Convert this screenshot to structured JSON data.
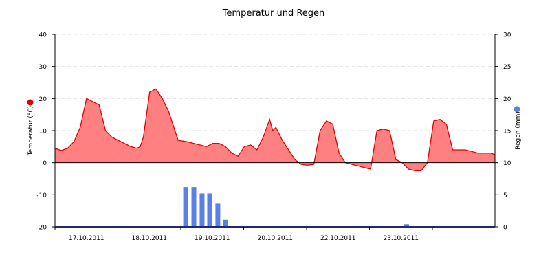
{
  "chart_data": {
    "type": "area",
    "title": "Temperatur und Regen",
    "y_left": {
      "label": "Temperatur (°C)",
      "ylim": [
        -20,
        40
      ],
      "ticks": [
        -20,
        -10,
        0,
        10,
        20,
        30,
        40
      ]
    },
    "y_right": {
      "label": "Regen (mm)",
      "ylim": [
        0,
        30
      ],
      "ticks": [
        0,
        5,
        10,
        15,
        20,
        25,
        30
      ]
    },
    "x_ticks": [
      "17.10.2011",
      "18.10.2011",
      "19.10.2011",
      "20.10.2011",
      "22.10.2011",
      "23.10.2011"
    ],
    "grid": "horizontal dashed",
    "series": [
      {
        "name": "Temperatur (°C)",
        "kind": "area",
        "axis": "left",
        "color": "#e00000",
        "fill": "#ff8080",
        "x": [
          0,
          0.1,
          0.2,
          0.3,
          0.4,
          0.5,
          0.6,
          0.7,
          0.8,
          0.9,
          1.0,
          1.1,
          1.15,
          1.2,
          1.3,
          1.35,
          1.4,
          1.5,
          1.6,
          1.7,
          1.8,
          1.9,
          1.95,
          2.0,
          2.1,
          2.2,
          2.3,
          2.4,
          2.5,
          2.6,
          2.7,
          2.8,
          2.9,
          3.0,
          3.1,
          3.2,
          3.3,
          3.4,
          3.45,
          3.5,
          3.6,
          3.7,
          3.8,
          3.9,
          4.0,
          4.1,
          4.2,
          4.3,
          4.4,
          4.5,
          4.6,
          4.7,
          4.8,
          4.9,
          5.0,
          5.1,
          5.2,
          5.3,
          5.4,
          5.5,
          5.6,
          5.7,
          5.8,
          5.9,
          6.0,
          6.1,
          6.2,
          6.3,
          6.4,
          6.5,
          6.6,
          6.7,
          6.8,
          6.9,
          6.97
        ],
        "values": [
          4.5,
          3.8,
          4.5,
          6.5,
          11,
          20,
          19,
          18,
          10,
          8,
          7,
          6,
          5.5,
          5,
          4.5,
          5,
          8,
          22,
          23,
          20,
          16,
          10,
          7,
          6.8,
          6.5,
          6,
          5.5,
          5,
          6,
          6,
          5,
          3,
          2,
          5,
          5.5,
          4,
          8,
          13.5,
          10,
          11,
          7,
          4,
          1,
          -0.5,
          -0.8,
          -0.5,
          10,
          13,
          12,
          3,
          0,
          -0.5,
          -1,
          -1.5,
          -2,
          10,
          10.5,
          10,
          1,
          0,
          -2,
          -2.5,
          -2.5,
          0,
          13,
          13.5,
          12,
          4,
          4,
          4,
          3.5,
          3,
          3,
          3,
          2.5
        ]
      },
      {
        "name": "Regen (mm)",
        "kind": "bar",
        "axis": "right",
        "color": "#5b7fea",
        "x": [
          2.07,
          2.2,
          2.33,
          2.45,
          2.58,
          2.7,
          5.57
        ],
        "values": [
          6.2,
          6.2,
          5.2,
          5.2,
          3.6,
          1.1,
          0.4
        ]
      }
    ]
  }
}
